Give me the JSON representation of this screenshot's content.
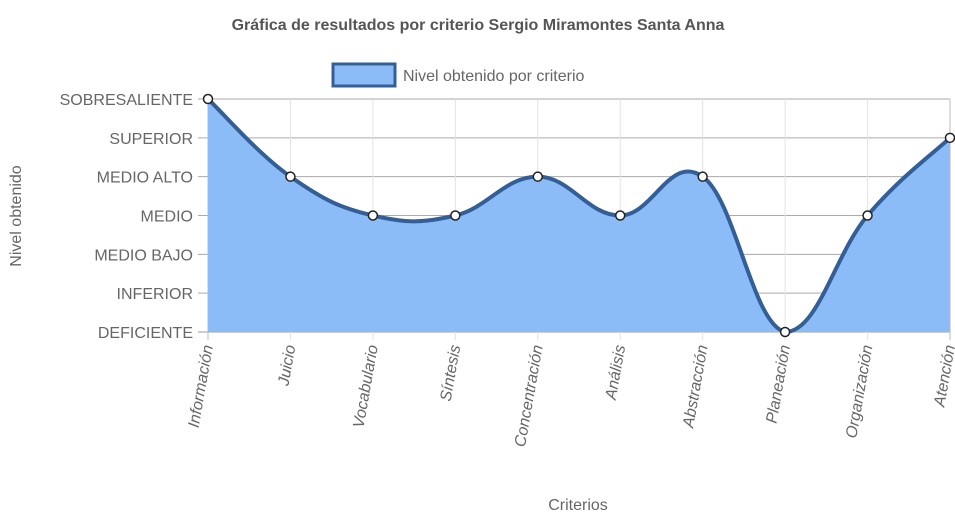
{
  "chart_data": {
    "type": "area",
    "title": "Gráfica de resultados por criterio Sergio Miramontes Santa Anna",
    "xlabel": "Criterios",
    "ylabel": "Nivel obtenido",
    "categories": [
      "Información",
      "Juicio",
      "Vocabulario",
      "Síntesis",
      "Concentración",
      "Análisis",
      "Abstracción",
      "Planeación",
      "Organización",
      "Atención"
    ],
    "y_levels": [
      "DEFICIENTE",
      "INFERIOR",
      "MEDIO BAJO",
      "MEDIO",
      "MEDIO ALTO",
      "SUPERIOR",
      "SOBRESALIENTE"
    ],
    "ylim": [
      0,
      6
    ],
    "series": [
      {
        "name": "Nivel obtenido por criterio",
        "values": [
          6,
          4,
          3,
          3,
          4,
          3,
          4,
          0,
          3,
          5
        ],
        "fill_color": "#8cbcf8",
        "line_color": "#335f96"
      }
    ],
    "legend_position": "top",
    "grid": true,
    "smooth": true
  }
}
